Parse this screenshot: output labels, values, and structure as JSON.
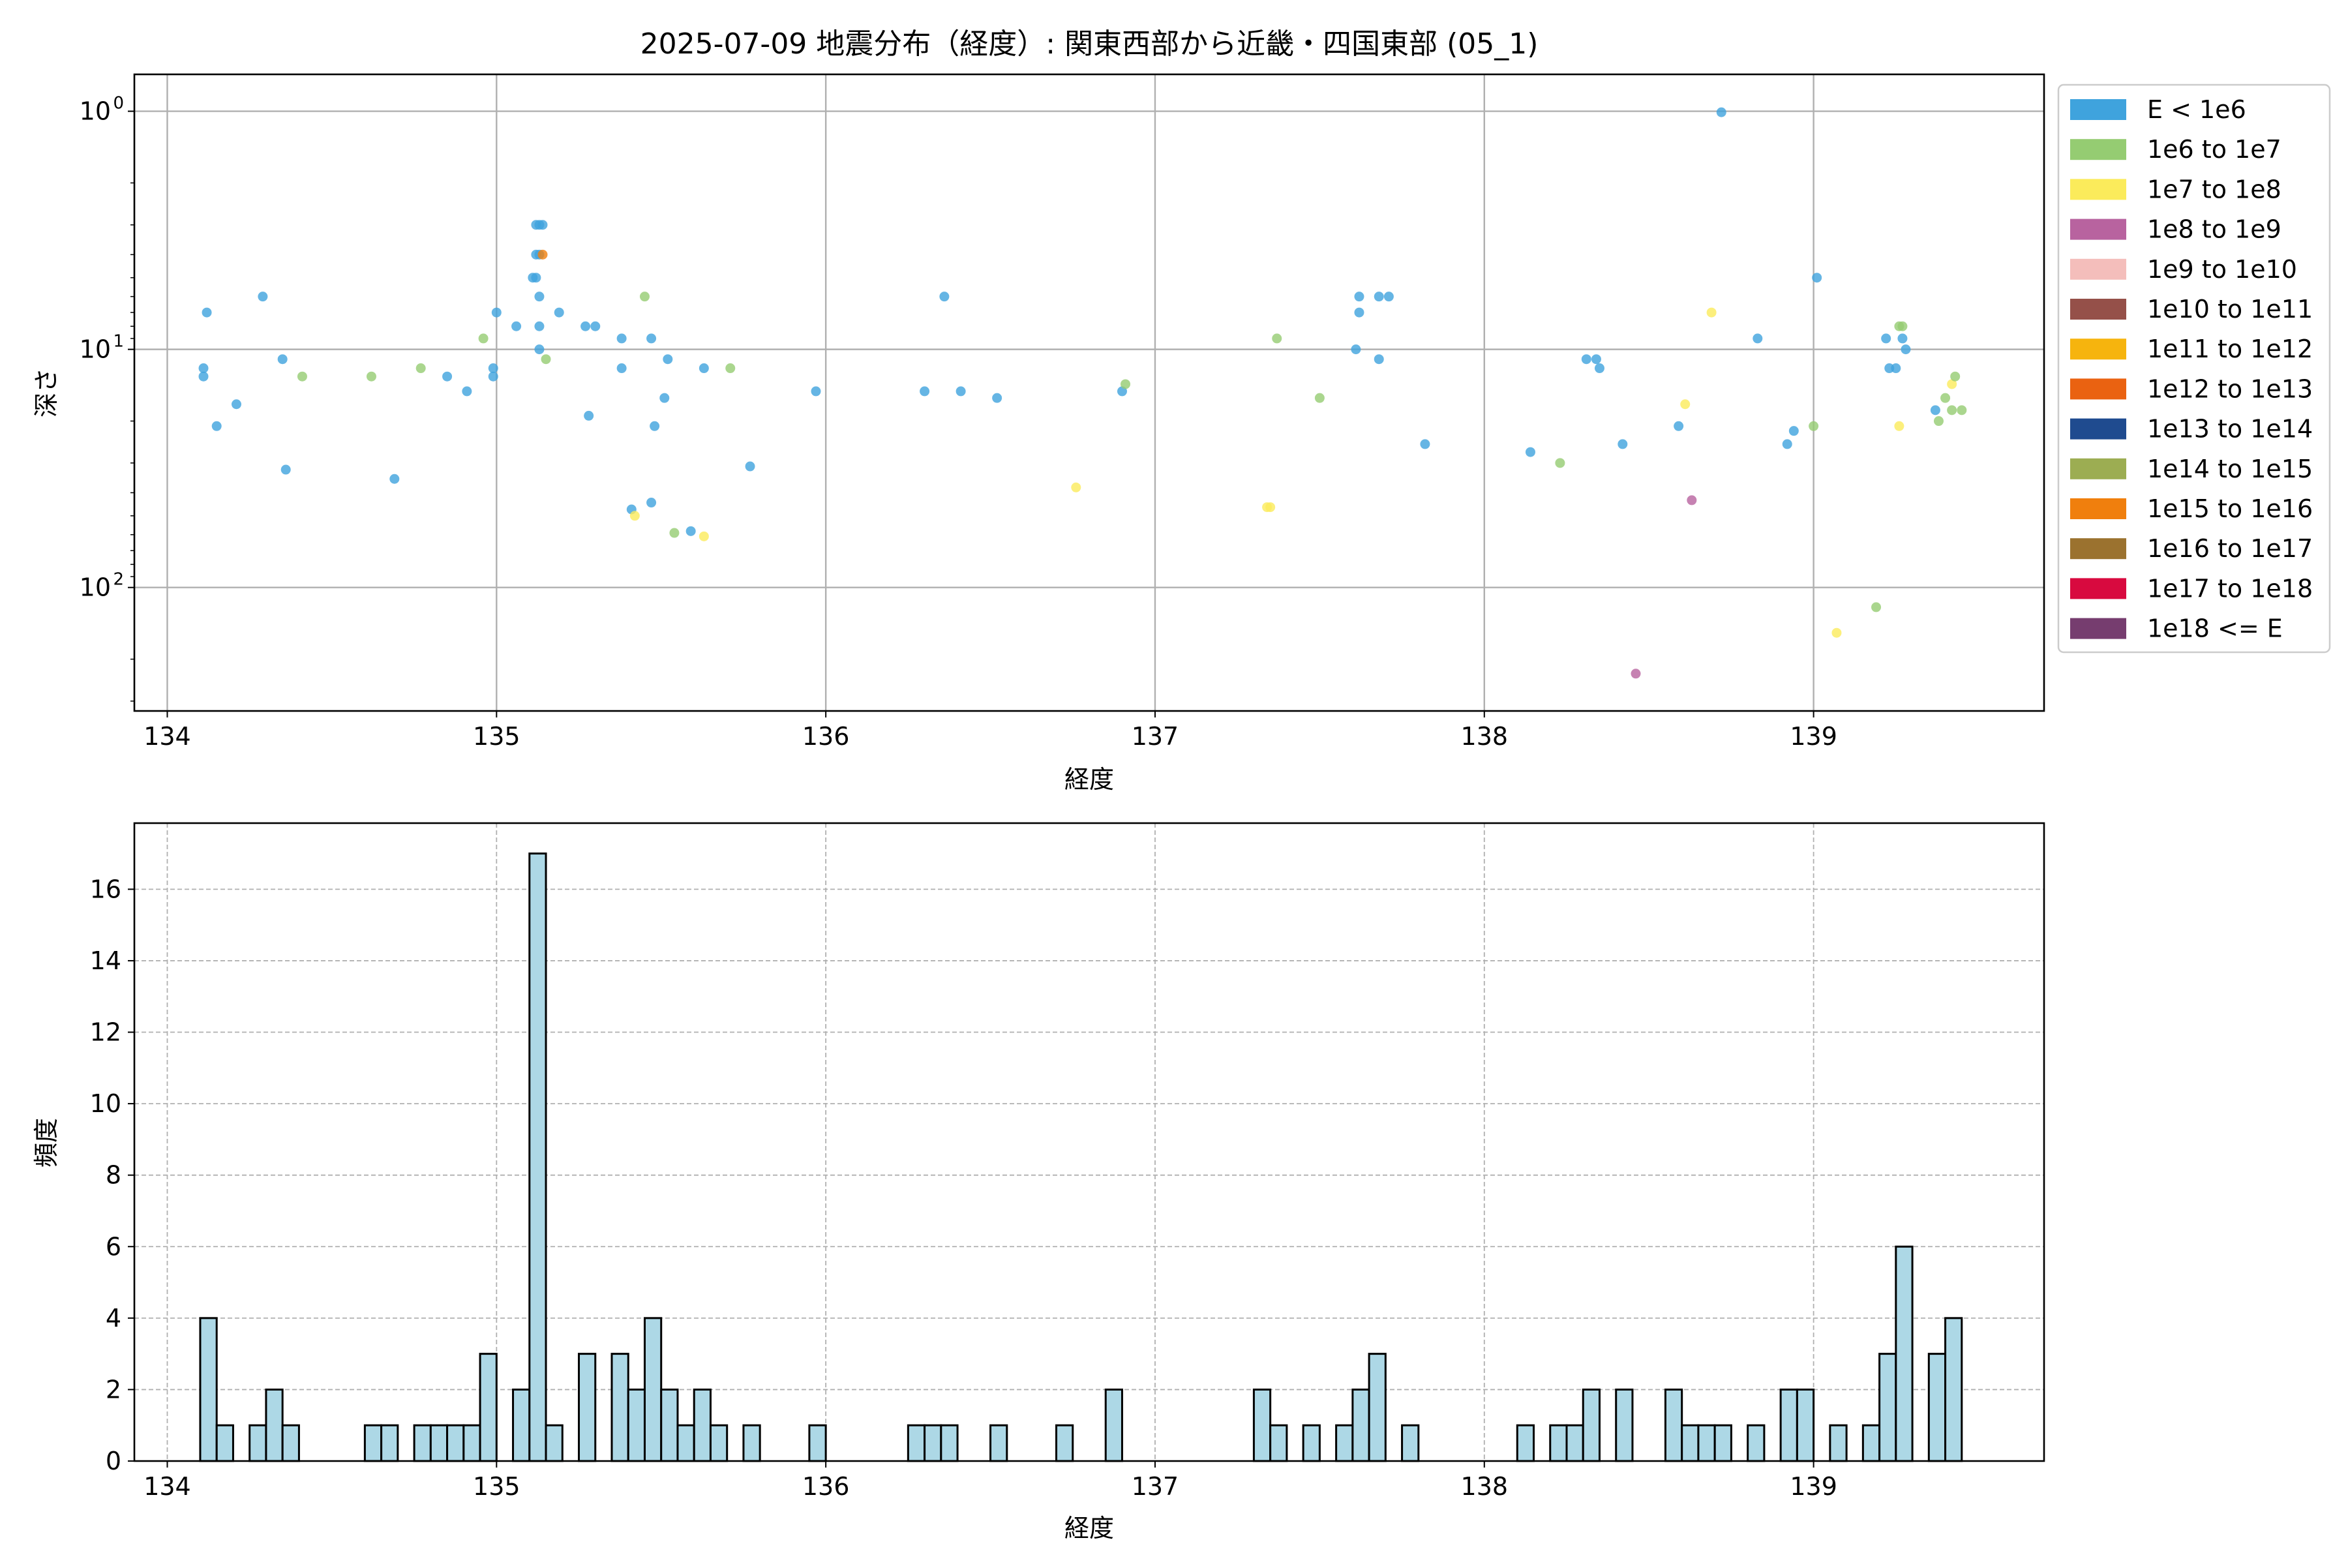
{
  "title": "2025-07-09 地震分布（経度）: 関東西部から近畿・四国東部 (05_1)",
  "colors": {
    "grid": "#b0b0b0",
    "hist_fill": "#add8e6",
    "hist_edge": "#000000"
  },
  "chart_data": [
    {
      "type": "scatter",
      "xlabel": "経度",
      "ylabel": "深さ",
      "xlim": [
        133.9,
        139.7
      ],
      "ylim": [
        330,
        0.7
      ],
      "y_scale": "log",
      "y_inverted": true,
      "grid": true,
      "xticks": [
        134,
        135,
        136,
        137,
        138,
        139
      ],
      "xtick_labels": [
        "134",
        "135",
        "136",
        "137",
        "138",
        "139"
      ],
      "yticks": [
        1,
        10,
        100
      ],
      "ytick_base": "10",
      "ytick_exponents": [
        "0",
        "1",
        "2"
      ],
      "legend_position": "outside-right",
      "legend": [
        {
          "label": "E < 1e6",
          "color": "#3fa3dd"
        },
        {
          "label": "1e6 to 1e7",
          "color": "#95cc72"
        },
        {
          "label": "1e7 to 1e8",
          "color": "#fbeb5b"
        },
        {
          "label": "1e8 to 1e9",
          "color": "#b8639f"
        },
        {
          "label": "1e9 to 1e10",
          "color": "#f4bebb"
        },
        {
          "label": "1e10 to 1e11",
          "color": "#955049"
        },
        {
          "label": "1e11 to 1e12",
          "color": "#f6b40e"
        },
        {
          "label": "1e12 to 1e13",
          "color": "#ea6211"
        },
        {
          "label": "1e13 to 1e14",
          "color": "#1f4b8f"
        },
        {
          "label": "1e14 to 1e15",
          "color": "#9cad52"
        },
        {
          "label": "1e15 to 1e16",
          "color": "#f07f0d"
        },
        {
          "label": "1e16 to 1e17",
          "color": "#9b722f"
        },
        {
          "label": "1e17 to 1e18",
          "color": "#d80a3f"
        },
        {
          "label": "1e18 <= E",
          "color": "#763d6f"
        }
      ],
      "points": [
        {
          "x": 134.11,
          "y": 12,
          "c": 0
        },
        {
          "x": 134.11,
          "y": 13,
          "c": 0
        },
        {
          "x": 134.12,
          "y": 7,
          "c": 0
        },
        {
          "x": 134.15,
          "y": 21,
          "c": 0
        },
        {
          "x": 134.21,
          "y": 17,
          "c": 0
        },
        {
          "x": 134.29,
          "y": 6,
          "c": 0
        },
        {
          "x": 134.35,
          "y": 11,
          "c": 0
        },
        {
          "x": 134.36,
          "y": 32,
          "c": 0
        },
        {
          "x": 134.41,
          "y": 13,
          "c": 1
        },
        {
          "x": 134.62,
          "y": 13,
          "c": 1
        },
        {
          "x": 134.69,
          "y": 35,
          "c": 0
        },
        {
          "x": 134.77,
          "y": 12,
          "c": 1
        },
        {
          "x": 134.85,
          "y": 13,
          "c": 0
        },
        {
          "x": 134.91,
          "y": 15,
          "c": 0
        },
        {
          "x": 134.96,
          "y": 9,
          "c": 1
        },
        {
          "x": 134.99,
          "y": 12,
          "c": 0
        },
        {
          "x": 134.99,
          "y": 13,
          "c": 0
        },
        {
          "x": 135.0,
          "y": 7,
          "c": 0
        },
        {
          "x": 135.06,
          "y": 8,
          "c": 0
        },
        {
          "x": 135.11,
          "y": 5,
          "c": 0
        },
        {
          "x": 135.12,
          "y": 3,
          "c": 0
        },
        {
          "x": 135.12,
          "y": 4,
          "c": 0
        },
        {
          "x": 135.12,
          "y": 5,
          "c": 0
        },
        {
          "x": 135.13,
          "y": 3,
          "c": 0
        },
        {
          "x": 135.13,
          "y": 4,
          "c": 0
        },
        {
          "x": 135.13,
          "y": 6,
          "c": 0
        },
        {
          "x": 135.13,
          "y": 8,
          "c": 0
        },
        {
          "x": 135.13,
          "y": 10,
          "c": 0
        },
        {
          "x": 135.14,
          "y": 3,
          "c": 0
        },
        {
          "x": 135.14,
          "y": 4,
          "c": 10
        },
        {
          "x": 135.15,
          "y": 11,
          "c": 1
        },
        {
          "x": 135.19,
          "y": 7,
          "c": 0
        },
        {
          "x": 135.27,
          "y": 8,
          "c": 0
        },
        {
          "x": 135.28,
          "y": 19,
          "c": 0
        },
        {
          "x": 135.3,
          "y": 8,
          "c": 0
        },
        {
          "x": 135.38,
          "y": 9,
          "c": 0
        },
        {
          "x": 135.38,
          "y": 12,
          "c": 0
        },
        {
          "x": 135.41,
          "y": 47,
          "c": 0
        },
        {
          "x": 135.42,
          "y": 50,
          "c": 2
        },
        {
          "x": 135.45,
          "y": 6,
          "c": 1
        },
        {
          "x": 135.47,
          "y": 44,
          "c": 0
        },
        {
          "x": 135.47,
          "y": 9,
          "c": 0
        },
        {
          "x": 135.48,
          "y": 21,
          "c": 0
        },
        {
          "x": 135.51,
          "y": 16,
          "c": 0
        },
        {
          "x": 135.52,
          "y": 11,
          "c": 0
        },
        {
          "x": 135.54,
          "y": 59,
          "c": 1
        },
        {
          "x": 135.59,
          "y": 58,
          "c": 0
        },
        {
          "x": 135.63,
          "y": 12,
          "c": 0
        },
        {
          "x": 135.63,
          "y": 61,
          "c": 2
        },
        {
          "x": 135.71,
          "y": 12,
          "c": 1
        },
        {
          "x": 135.77,
          "y": 31,
          "c": 0
        },
        {
          "x": 135.97,
          "y": 15,
          "c": 0
        },
        {
          "x": 136.3,
          "y": 15,
          "c": 0
        },
        {
          "x": 136.36,
          "y": 6,
          "c": 0
        },
        {
          "x": 136.41,
          "y": 15,
          "c": 0
        },
        {
          "x": 136.52,
          "y": 16,
          "c": 0
        },
        {
          "x": 136.76,
          "y": 38,
          "c": 2
        },
        {
          "x": 136.9,
          "y": 15,
          "c": 0
        },
        {
          "x": 136.91,
          "y": 14,
          "c": 1
        },
        {
          "x": 137.34,
          "y": 46,
          "c": 2
        },
        {
          "x": 137.35,
          "y": 46,
          "c": 2
        },
        {
          "x": 137.37,
          "y": 9,
          "c": 1
        },
        {
          "x": 137.5,
          "y": 16,
          "c": 1
        },
        {
          "x": 137.61,
          "y": 10,
          "c": 0
        },
        {
          "x": 137.62,
          "y": 6,
          "c": 0
        },
        {
          "x": 137.62,
          "y": 7,
          "c": 0
        },
        {
          "x": 137.68,
          "y": 6,
          "c": 0
        },
        {
          "x": 137.68,
          "y": 11,
          "c": 0
        },
        {
          "x": 137.71,
          "y": 6,
          "c": 0
        },
        {
          "x": 137.82,
          "y": 25,
          "c": 0
        },
        {
          "x": 138.14,
          "y": 27,
          "c": 0
        },
        {
          "x": 138.23,
          "y": 30,
          "c": 1
        },
        {
          "x": 138.31,
          "y": 11,
          "c": 0
        },
        {
          "x": 138.34,
          "y": 11,
          "c": 0
        },
        {
          "x": 138.35,
          "y": 12,
          "c": 0
        },
        {
          "x": 138.42,
          "y": 25,
          "c": 0
        },
        {
          "x": 138.46,
          "y": 230,
          "c": 3
        },
        {
          "x": 138.59,
          "y": 21,
          "c": 0
        },
        {
          "x": 138.61,
          "y": 17,
          "c": 2
        },
        {
          "x": 138.63,
          "y": 43,
          "c": 3
        },
        {
          "x": 138.69,
          "y": 7,
          "c": 2
        },
        {
          "x": 138.72,
          "y": 1.01,
          "c": 0
        },
        {
          "x": 138.83,
          "y": 9,
          "c": 0
        },
        {
          "x": 138.92,
          "y": 25,
          "c": 0
        },
        {
          "x": 138.94,
          "y": 22,
          "c": 0
        },
        {
          "x": 139.0,
          "y": 21,
          "c": 1
        },
        {
          "x": 139.01,
          "y": 5,
          "c": 0
        },
        {
          "x": 139.07,
          "y": 155,
          "c": 2
        },
        {
          "x": 139.19,
          "y": 121,
          "c": 1
        },
        {
          "x": 139.22,
          "y": 9,
          "c": 0
        },
        {
          "x": 139.23,
          "y": 12,
          "c": 0
        },
        {
          "x": 139.25,
          "y": 12,
          "c": 0
        },
        {
          "x": 139.26,
          "y": 21,
          "c": 2
        },
        {
          "x": 139.26,
          "y": 8,
          "c": 1
        },
        {
          "x": 139.27,
          "y": 8,
          "c": 1
        },
        {
          "x": 139.27,
          "y": 9,
          "c": 0
        },
        {
          "x": 139.28,
          "y": 10,
          "c": 0
        },
        {
          "x": 139.37,
          "y": 18,
          "c": 0
        },
        {
          "x": 139.38,
          "y": 20,
          "c": 1
        },
        {
          "x": 139.4,
          "y": 16,
          "c": 1
        },
        {
          "x": 139.42,
          "y": 14,
          "c": 2
        },
        {
          "x": 139.42,
          "y": 18,
          "c": 1
        },
        {
          "x": 139.43,
          "y": 13,
          "c": 1
        },
        {
          "x": 139.45,
          "y": 18,
          "c": 1
        }
      ]
    },
    {
      "type": "bar",
      "xlabel": "経度",
      "ylabel": "頻度",
      "xlim": [
        133.9,
        139.7
      ],
      "ylim": [
        0,
        17.85
      ],
      "grid": true,
      "grid_style": "dashed",
      "xticks": [
        134,
        135,
        136,
        137,
        138,
        139
      ],
      "xtick_labels": [
        "134",
        "135",
        "136",
        "137",
        "138",
        "139"
      ],
      "yticks": [
        0,
        2,
        4,
        6,
        8,
        10,
        12,
        14,
        16
      ],
      "ytick_labels": [
        "0",
        "2",
        "4",
        "6",
        "8",
        "10",
        "12",
        "14",
        "16"
      ],
      "bin_width": 0.05,
      "bins": [
        {
          "x": 134.1,
          "v": 4
        },
        {
          "x": 134.15,
          "v": 1
        },
        {
          "x": 134.25,
          "v": 1
        },
        {
          "x": 134.3,
          "v": 2
        },
        {
          "x": 134.35,
          "v": 1
        },
        {
          "x": 134.6,
          "v": 1
        },
        {
          "x": 134.65,
          "v": 1
        },
        {
          "x": 134.75,
          "v": 1
        },
        {
          "x": 134.8,
          "v": 1
        },
        {
          "x": 134.85,
          "v": 1
        },
        {
          "x": 134.9,
          "v": 1
        },
        {
          "x": 134.95,
          "v": 3
        },
        {
          "x": 135.05,
          "v": 2
        },
        {
          "x": 135.1,
          "v": 17
        },
        {
          "x": 135.15,
          "v": 1
        },
        {
          "x": 135.25,
          "v": 3
        },
        {
          "x": 135.35,
          "v": 3
        },
        {
          "x": 135.4,
          "v": 2
        },
        {
          "x": 135.45,
          "v": 4
        },
        {
          "x": 135.5,
          "v": 2
        },
        {
          "x": 135.55,
          "v": 1
        },
        {
          "x": 135.6,
          "v": 2
        },
        {
          "x": 135.65,
          "v": 1
        },
        {
          "x": 135.75,
          "v": 1
        },
        {
          "x": 135.95,
          "v": 1
        },
        {
          "x": 136.25,
          "v": 1
        },
        {
          "x": 136.3,
          "v": 1
        },
        {
          "x": 136.35,
          "v": 1
        },
        {
          "x": 136.5,
          "v": 1
        },
        {
          "x": 136.7,
          "v": 1
        },
        {
          "x": 136.85,
          "v": 2
        },
        {
          "x": 137.3,
          "v": 2
        },
        {
          "x": 137.35,
          "v": 1
        },
        {
          "x": 137.45,
          "v": 1
        },
        {
          "x": 137.55,
          "v": 1
        },
        {
          "x": 137.6,
          "v": 2
        },
        {
          "x": 137.65,
          "v": 3
        },
        {
          "x": 137.75,
          "v": 1
        },
        {
          "x": 138.1,
          "v": 1
        },
        {
          "x": 138.2,
          "v": 1
        },
        {
          "x": 138.25,
          "v": 1
        },
        {
          "x": 138.3,
          "v": 2
        },
        {
          "x": 138.4,
          "v": 2
        },
        {
          "x": 138.55,
          "v": 2
        },
        {
          "x": 138.6,
          "v": 1
        },
        {
          "x": 138.65,
          "v": 1
        },
        {
          "x": 138.7,
          "v": 1
        },
        {
          "x": 138.8,
          "v": 1
        },
        {
          "x": 138.9,
          "v": 2
        },
        {
          "x": 138.95,
          "v": 2
        },
        {
          "x": 139.05,
          "v": 1
        },
        {
          "x": 139.15,
          "v": 1
        },
        {
          "x": 139.2,
          "v": 3
        },
        {
          "x": 139.25,
          "v": 6
        },
        {
          "x": 139.35,
          "v": 3
        },
        {
          "x": 139.4,
          "v": 4
        }
      ]
    }
  ]
}
